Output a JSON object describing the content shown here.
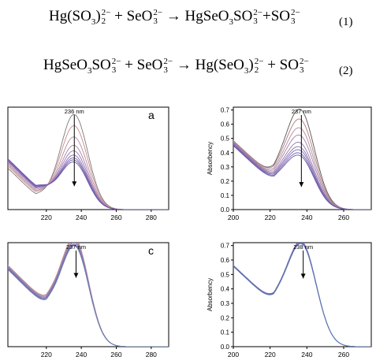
{
  "equations": [
    {
      "lhs": [
        {
          "t": "Hg(SO"
        },
        {
          "sub": "3"
        },
        {
          "t": ")"
        },
        {
          "subsup": [
            "2",
            "2−"
          ]
        },
        {
          "t": " + SeO"
        },
        {
          "subsup": [
            "3",
            "2−"
          ]
        }
      ],
      "arrow": "→",
      "rhs": [
        {
          "t": "HgSeO"
        },
        {
          "sub": "3"
        },
        {
          "t": "SO"
        },
        {
          "subsup": [
            "3",
            "2−"
          ]
        },
        {
          "t": "+SO"
        },
        {
          "subsup": [
            "3",
            "2−"
          ]
        }
      ],
      "number": "(1)"
    },
    {
      "lhs": [
        {
          "t": "HgSeO"
        },
        {
          "sub": "3"
        },
        {
          "t": "SO"
        },
        {
          "subsup": [
            "3",
            "2−"
          ]
        },
        {
          "t": " + SeO"
        },
        {
          "subsup": [
            "3",
            "2−"
          ]
        }
      ],
      "arrow": "→",
      "rhs": [
        {
          "t": "Hg(SeO"
        },
        {
          "sub": "3"
        },
        {
          "t": ")"
        },
        {
          "subsup": [
            "2",
            "2−"
          ]
        },
        {
          "t": " + SO"
        },
        {
          "subsup": [
            "3",
            "2−"
          ]
        }
      ],
      "number": "(2)"
    }
  ],
  "chart_data": [
    {
      "panel_label": "a",
      "type": "line",
      "peak_label": "236 nm",
      "peak_nm": 236,
      "xlabel": "",
      "ylabel": "",
      "xlim": [
        198,
        290
      ],
      "ylim": [
        0,
        0.72
      ],
      "x_ticks": [
        220,
        240,
        260,
        280
      ],
      "y_ticks": [],
      "arrow": "down",
      "trough_nm": 214,
      "series": [
        {
          "peak_height": 0.66,
          "trough_height": 0.1,
          "color": "#7a7a7a"
        },
        {
          "peak_height": 0.58,
          "trough_height": 0.115,
          "color": "#c98a8a"
        },
        {
          "peak_height": 0.5,
          "trough_height": 0.125,
          "color": "#b88aa0"
        },
        {
          "peak_height": 0.44,
          "trough_height": 0.135,
          "color": "#a884a8"
        },
        {
          "peak_height": 0.4,
          "trough_height": 0.145,
          "color": "#9a7ab0"
        },
        {
          "peak_height": 0.37,
          "trough_height": 0.15,
          "color": "#8a6fb0"
        },
        {
          "peak_height": 0.35,
          "trough_height": 0.155,
          "color": "#7e66b0"
        },
        {
          "peak_height": 0.335,
          "trough_height": 0.16,
          "color": "#7460ae"
        },
        {
          "peak_height": 0.32,
          "trough_height": 0.165,
          "color": "#6a5aac"
        }
      ]
    },
    {
      "panel_label": "",
      "type": "line",
      "peak_label": "237 nm",
      "peak_nm": 237,
      "xlabel": "",
      "ylabel": "Absorbency",
      "xlim": [
        200,
        275
      ],
      "ylim": [
        0,
        0.72
      ],
      "x_ticks": [
        200,
        220,
        240,
        260
      ],
      "y_ticks": [
        0.0,
        0.1,
        0.2,
        0.3,
        0.4,
        0.5,
        0.6,
        0.7
      ],
      "arrow": "down",
      "trough_nm": 222,
      "series": [
        {
          "peak_height": 0.63,
          "trough_height": 0.22,
          "color": "#555555"
        },
        {
          "peak_height": 0.56,
          "trough_height": 0.22,
          "color": "#b07a7a"
        },
        {
          "peak_height": 0.5,
          "trough_height": 0.215,
          "color": "#b08aa0"
        },
        {
          "peak_height": 0.45,
          "trough_height": 0.21,
          "color": "#a080a8"
        },
        {
          "peak_height": 0.4,
          "trough_height": 0.205,
          "color": "#9478ac"
        },
        {
          "peak_height": 0.37,
          "trough_height": 0.2,
          "color": "#8a70ae"
        },
        {
          "peak_height": 0.35,
          "trough_height": 0.195,
          "color": "#7e68ae"
        },
        {
          "peak_height": 0.33,
          "trough_height": 0.19,
          "color": "#7262ac"
        },
        {
          "peak_height": 0.315,
          "trough_height": 0.185,
          "color": "#6a5aac"
        }
      ]
    },
    {
      "panel_label": "c",
      "type": "line",
      "peak_label": "237 nm",
      "peak_nm": 237,
      "xlabel": "",
      "ylabel": "",
      "xlim": [
        198,
        290
      ],
      "ylim": [
        0,
        0.72
      ],
      "x_ticks": [
        220,
        240,
        260,
        280
      ],
      "y_ticks": [],
      "arrow": "down",
      "trough_nm": 220,
      "series": [
        {
          "peak_height": 0.68,
          "trough_height": 0.3,
          "color": "#c08a8a"
        },
        {
          "peak_height": 0.67,
          "trough_height": 0.295,
          "color": "#b08aa8"
        },
        {
          "peak_height": 0.66,
          "trough_height": 0.29,
          "color": "#9a80b0"
        },
        {
          "peak_height": 0.65,
          "trough_height": 0.285,
          "color": "#8a78b0"
        },
        {
          "peak_height": 0.64,
          "trough_height": 0.28,
          "color": "#7c70b0"
        },
        {
          "peak_height": 0.635,
          "trough_height": 0.275,
          "color": "#6e68b0"
        },
        {
          "peak_height": 0.63,
          "trough_height": 0.27,
          "color": "#6a8ab0"
        }
      ]
    },
    {
      "panel_label": "",
      "type": "line",
      "peak_label": "238 nm",
      "peak_nm": 238,
      "xlabel": "",
      "ylabel": "Absorbency",
      "xlim": [
        200,
        275
      ],
      "ylim": [
        0,
        0.72
      ],
      "x_ticks": [
        200,
        220,
        240,
        260
      ],
      "y_ticks": [
        0.0,
        0.1,
        0.2,
        0.3,
        0.4,
        0.5,
        0.6,
        0.7
      ],
      "arrow": "down",
      "trough_nm": 222,
      "series": [
        {
          "peak_height": 0.64,
          "trough_height": 0.3,
          "color": "#8a70b0"
        },
        {
          "peak_height": 0.635,
          "trough_height": 0.298,
          "color": "#7a6ab0"
        },
        {
          "peak_height": 0.63,
          "trough_height": 0.296,
          "color": "#6a64b0"
        },
        {
          "peak_height": 0.628,
          "trough_height": 0.294,
          "color": "#5e70b0"
        },
        {
          "peak_height": 0.625,
          "trough_height": 0.292,
          "color": "#5a7ab0"
        }
      ]
    }
  ]
}
